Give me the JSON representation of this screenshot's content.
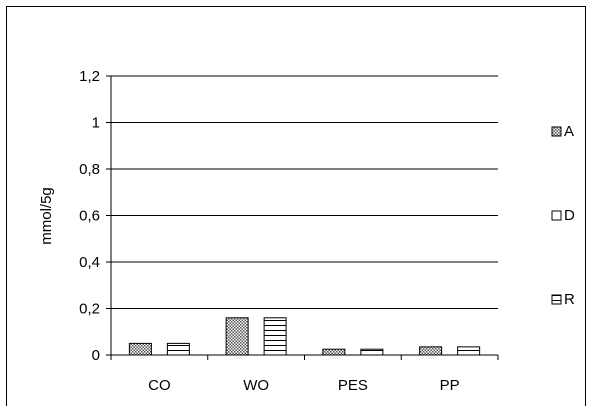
{
  "chart_data": {
    "type": "bar",
    "title": "",
    "xlabel": "",
    "ylabel": "mmol/5g",
    "ylim": [
      0,
      1.2
    ],
    "yticks": [
      "0",
      "0,2",
      "0,4",
      "0,6",
      "0,8",
      "1",
      "1,2"
    ],
    "categories": [
      "CO",
      "WO",
      "PES",
      "PP"
    ],
    "grid": true,
    "legend_position": "right",
    "series": [
      {
        "name": "A",
        "pattern": "crosshatch",
        "values": [
          0.05,
          0.16,
          0.025,
          0.035
        ]
      },
      {
        "name": "D",
        "pattern": "blank",
        "values": [
          0,
          0,
          0,
          0
        ]
      },
      {
        "name": "R",
        "pattern": "horizontal-lines",
        "values": [
          0.05,
          0.16,
          0.025,
          0.035
        ]
      }
    ],
    "colors": {
      "bar_fill": "#ffffff",
      "bar_stroke": "#000000",
      "grid": "#000000"
    }
  }
}
